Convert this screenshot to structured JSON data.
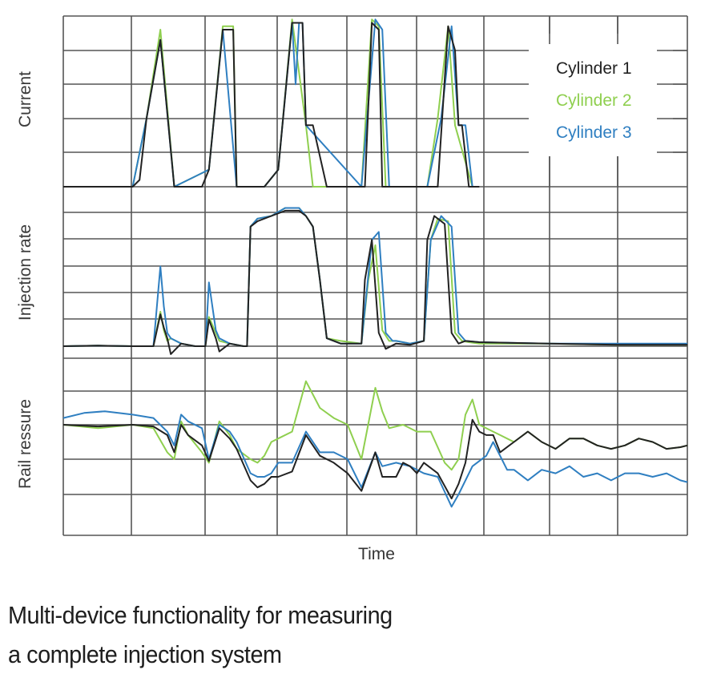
{
  "chart_data": [
    {
      "type": "line",
      "panel": "top",
      "ylabel": "Current",
      "xlabel": "Time",
      "grid": true,
      "ylim": [
        0,
        5
      ],
      "xlim": [
        0,
        9
      ],
      "note": "x in vertical-grid units (9 columns), y in horizontal-grid units (5 rows); pilot/main injection current pulses",
      "series": [
        {
          "name": "Cylinder 1",
          "x": [
            0,
            1.0,
            1.1,
            1.2,
            1.4,
            1.6,
            1.65,
            1.8,
            2.0,
            2.1,
            2.3,
            2.45,
            2.5,
            2.7,
            2.85,
            2.9,
            3.1,
            3.3,
            3.45,
            3.5,
            3.6,
            3.8,
            4.2,
            4.3,
            4.35,
            4.45,
            4.55,
            4.6,
            4.65,
            4.8,
            5.25,
            5.4,
            5.55,
            5.65,
            5.7,
            5.75,
            5.85,
            5.9,
            6.0
          ],
          "y": [
            0,
            0,
            0.2,
            2.0,
            4.3,
            0,
            0,
            0,
            0,
            0.5,
            4.6,
            4.6,
            0,
            0,
            0,
            0,
            0.5,
            4.8,
            4.8,
            1.8,
            1.8,
            0,
            0,
            0,
            0,
            4.8,
            4.6,
            0,
            0,
            0,
            0,
            0,
            4.7,
            4.0,
            1.8,
            1.8,
            0,
            0,
            0
          ]
        },
        {
          "name": "Cylinder 2",
          "x": [
            0,
            1.0,
            1.2,
            1.4,
            1.6,
            2.1,
            2.3,
            2.45,
            2.5,
            2.9,
            3.1,
            3.3,
            3.5,
            3.6,
            4.3,
            4.45,
            4.55,
            4.65,
            5.25,
            5.4,
            5.55,
            5.65,
            5.9
          ],
          "y": [
            0,
            0,
            2.0,
            4.6,
            0,
            0.5,
            4.7,
            4.7,
            0,
            0,
            0.5,
            4.9,
            1.8,
            0,
            0,
            4.9,
            4.7,
            0,
            0,
            2.0,
            4.7,
            1.8,
            0
          ]
        },
        {
          "name": "Cylinder 3",
          "x": [
            0,
            1.0,
            1.2,
            1.4,
            1.6,
            2.1,
            2.3,
            2.5,
            2.9,
            3.1,
            3.3,
            3.35,
            3.4,
            3.45,
            3.5,
            4.3,
            4.5,
            4.6,
            4.7,
            5.25,
            5.45,
            5.6,
            5.7,
            5.8,
            5.9
          ],
          "y": [
            0,
            0,
            2.0,
            4.3,
            0,
            0.5,
            4.6,
            0,
            0,
            0.5,
            4.8,
            3.0,
            4.8,
            4.8,
            1.8,
            0,
            4.9,
            4.6,
            0,
            0,
            2.0,
            4.7,
            1.8,
            1.8,
            0
          ]
        }
      ]
    },
    {
      "type": "line",
      "panel": "middle",
      "ylabel": "Injection rate",
      "xlabel": "Time",
      "grid": true,
      "ylim": [
        0,
        6
      ],
      "xlim": [
        0,
        9
      ],
      "note": "x in vertical-grid units, y in horizontal-grid units (6 rows)",
      "series": [
        {
          "name": "Cylinder 1",
          "x": [
            0,
            0.5,
            1.0,
            1.3,
            1.4,
            1.45,
            1.5,
            1.55,
            1.7,
            1.9,
            2.05,
            2.1,
            2.2,
            2.25,
            2.4,
            2.6,
            2.65,
            2.7,
            2.8,
            3.0,
            3.2,
            3.4,
            3.5,
            3.6,
            3.7,
            3.8,
            4.0,
            4.3,
            4.35,
            4.45,
            4.55,
            4.65,
            4.8,
            5.0,
            5.2,
            5.25,
            5.35,
            5.5,
            5.6,
            5.7,
            5.8,
            6.0,
            7.0,
            8.0,
            9.0
          ],
          "y": [
            0.0,
            0.02,
            0.0,
            0.0,
            1.2,
            0.7,
            0.3,
            -0.3,
            0.1,
            0.0,
            0.0,
            1.0,
            0.3,
            -0.2,
            0.1,
            0.0,
            0.0,
            4.5,
            4.7,
            4.9,
            5.1,
            5.1,
            4.9,
            4.5,
            2.5,
            0.3,
            0.1,
            0.1,
            2.5,
            4.0,
            0.5,
            -0.1,
            0.1,
            0.05,
            0.2,
            4.0,
            4.9,
            4.6,
            0.5,
            0.1,
            0.2,
            0.15,
            0.1,
            0.05,
            0.05
          ]
        },
        {
          "name": "Cylinder 2",
          "x": [
            0,
            0.5,
            1.0,
            1.3,
            1.4,
            1.45,
            1.5,
            1.55,
            1.7,
            1.9,
            2.05,
            2.1,
            2.2,
            2.25,
            2.4,
            2.6,
            2.65,
            2.7,
            2.8,
            3.0,
            3.2,
            3.4,
            3.5,
            3.6,
            3.7,
            3.8,
            4.0,
            4.3,
            4.4,
            4.5,
            4.6,
            4.7,
            4.8,
            5.0,
            5.2,
            5.3,
            5.4,
            5.55,
            5.65,
            5.75,
            5.85,
            6.0,
            7.0,
            8.0,
            9.0
          ],
          "y": [
            0.0,
            0.02,
            0.0,
            0.0,
            1.3,
            0.6,
            0.2,
            0.3,
            0.1,
            0.0,
            0.0,
            1.1,
            0.5,
            0.2,
            0.1,
            0.0,
            0.0,
            4.5,
            4.8,
            4.9,
            5.2,
            5.2,
            4.9,
            4.5,
            2.5,
            0.3,
            0.2,
            0.1,
            2.5,
            3.8,
            0.6,
            0.2,
            0.2,
            0.1,
            0.2,
            4.0,
            4.8,
            4.7,
            0.5,
            0.2,
            0.15,
            0.1,
            0.1,
            0.05,
            0.05
          ]
        },
        {
          "name": "Cylinder 3",
          "x": [
            0,
            0.5,
            1.0,
            1.3,
            1.4,
            1.45,
            1.5,
            1.55,
            1.7,
            1.9,
            2.05,
            2.1,
            2.15,
            2.2,
            2.25,
            2.4,
            2.6,
            2.65,
            2.7,
            2.8,
            3.0,
            3.2,
            3.4,
            3.5,
            3.6,
            3.7,
            3.8,
            4.0,
            4.3,
            4.45,
            4.55,
            4.65,
            4.75,
            4.8,
            5.0,
            5.2,
            5.3,
            5.45,
            5.6,
            5.7,
            5.8,
            6.0,
            7.0,
            8.0,
            9.0
          ],
          "y": [
            0.0,
            0.02,
            0.0,
            0.0,
            3.0,
            1.5,
            0.5,
            0.3,
            0.1,
            0.0,
            0.0,
            2.4,
            1.5,
            0.6,
            0.3,
            0.1,
            0.0,
            0.0,
            4.5,
            4.8,
            4.9,
            5.2,
            5.2,
            4.9,
            4.5,
            2.5,
            0.3,
            0.1,
            0.1,
            4.0,
            4.3,
            0.5,
            0.2,
            0.2,
            0.1,
            0.2,
            4.0,
            4.9,
            4.5,
            0.5,
            0.2,
            0.15,
            0.1,
            0.1,
            0.1
          ]
        }
      ]
    },
    {
      "type": "line",
      "panel": "bottom",
      "ylabel": "Rail ressure",
      "xlabel": "Time",
      "grid": true,
      "ylim": [
        0,
        5
      ],
      "xlim": [
        0,
        9
      ],
      "note": "x in vertical-grid units, y in horizontal-grid units (5 rows, bottom row taller)",
      "series": [
        {
          "name": "Cylinder 1",
          "x": [
            0,
            0.5,
            1.0,
            1.3,
            1.5,
            1.6,
            1.7,
            1.8,
            2.0,
            2.1,
            2.25,
            2.4,
            2.5,
            2.7,
            2.8,
            2.9,
            3.0,
            3.1,
            3.3,
            3.5,
            3.7,
            3.8,
            3.9,
            4.1,
            4.3,
            4.5,
            4.6,
            4.8,
            4.9,
            5.0,
            5.1,
            5.2,
            5.4,
            5.6,
            5.7,
            5.8,
            5.9,
            6.0,
            6.1,
            6.2,
            6.3,
            6.5,
            6.7,
            6.9,
            7.1,
            7.3,
            7.5,
            7.7,
            7.9,
            8.1,
            8.3,
            8.5,
            8.7,
            8.9,
            9.0
          ],
          "y": [
            3.0,
            2.95,
            3.0,
            2.95,
            2.7,
            2.2,
            3.0,
            2.7,
            2.4,
            1.95,
            2.9,
            2.6,
            2.3,
            1.4,
            1.2,
            1.3,
            1.5,
            1.5,
            1.65,
            2.7,
            2.1,
            2.0,
            1.9,
            1.6,
            1.1,
            2.2,
            1.5,
            1.5,
            1.9,
            1.8,
            1.6,
            1.9,
            1.6,
            0.9,
            1.3,
            1.9,
            3.15,
            2.8,
            2.7,
            2.7,
            2.2,
            2.5,
            2.8,
            2.5,
            2.3,
            2.6,
            2.6,
            2.4,
            2.3,
            2.4,
            2.6,
            2.5,
            2.3,
            2.35,
            2.4
          ]
        },
        {
          "name": "Cylinder 2",
          "x": [
            0,
            0.5,
            1.0,
            1.3,
            1.5,
            1.6,
            1.7,
            1.8,
            2.0,
            2.1,
            2.25,
            2.4,
            2.5,
            2.7,
            2.8,
            2.9,
            3.0,
            3.1,
            3.3,
            3.5,
            3.7,
            3.9,
            4.1,
            4.3,
            4.5,
            4.6,
            4.7,
            4.9,
            5.1,
            5.3,
            5.5,
            5.6,
            5.7,
            5.8,
            5.9,
            6.0,
            6.2,
            6.3,
            6.5,
            6.7,
            6.9,
            7.1,
            7.3,
            7.5,
            7.7,
            7.9,
            8.1,
            8.3,
            8.5,
            8.7,
            8.9,
            9.0
          ],
          "y": [
            3.0,
            2.9,
            3.0,
            2.9,
            2.2,
            2.0,
            3.1,
            2.7,
            2.2,
            1.9,
            3.1,
            2.7,
            2.3,
            2.0,
            1.9,
            2.1,
            2.5,
            2.6,
            2.8,
            4.3,
            3.5,
            3.2,
            3.0,
            2.0,
            4.1,
            3.4,
            2.9,
            3.0,
            2.8,
            2.8,
            1.9,
            1.7,
            2.0,
            3.3,
            3.75,
            3.0,
            2.8,
            2.7,
            2.5,
            2.8,
            2.5,
            2.3,
            2.6,
            2.6,
            2.4,
            2.3,
            2.4,
            2.6,
            2.5,
            2.3,
            2.35,
            2.4
          ]
        },
        {
          "name": "Cylinder 3",
          "x": [
            0,
            0.3,
            0.6,
            1.0,
            1.3,
            1.5,
            1.6,
            1.7,
            1.8,
            2.0,
            2.1,
            2.25,
            2.4,
            2.5,
            2.7,
            2.8,
            2.9,
            3.0,
            3.1,
            3.3,
            3.5,
            3.7,
            3.9,
            4.1,
            4.3,
            4.5,
            4.6,
            4.8,
            5.0,
            5.2,
            5.4,
            5.6,
            5.7,
            5.9,
            6.1,
            6.2,
            6.4,
            6.5,
            6.7,
            6.9,
            7.1,
            7.3,
            7.5,
            7.7,
            7.9,
            8.1,
            8.3,
            8.5,
            8.7,
            8.9,
            9.0
          ],
          "y": [
            3.2,
            3.35,
            3.4,
            3.3,
            3.2,
            2.8,
            2.4,
            3.3,
            3.1,
            2.9,
            2.0,
            3.0,
            2.8,
            2.5,
            1.6,
            1.5,
            1.5,
            1.6,
            1.9,
            1.9,
            2.8,
            2.2,
            2.2,
            2.0,
            1.2,
            2.2,
            1.8,
            1.9,
            1.8,
            1.6,
            1.5,
            0.7,
            1.0,
            1.8,
            2.1,
            2.5,
            1.7,
            1.7,
            1.4,
            1.7,
            1.6,
            1.8,
            1.5,
            1.6,
            1.4,
            1.6,
            1.6,
            1.5,
            1.6,
            1.4,
            1.35
          ]
        }
      ]
    }
  ],
  "figure": {
    "ylabels": {
      "current": "Current",
      "injection_rate": "Injection rate",
      "rail_pressure": "Rail ressure"
    },
    "xlabel": "Time",
    "legend": [
      {
        "label": "Cylinder 1",
        "color": "#222222"
      },
      {
        "label": "Cylinder 2",
        "color": "#8fcf4f"
      },
      {
        "label": "Cylinder 3",
        "color": "#2f7fc1"
      }
    ]
  },
  "caption": {
    "line1": "Multi-device functionality for measuring",
    "line2": "a complete injection system"
  }
}
